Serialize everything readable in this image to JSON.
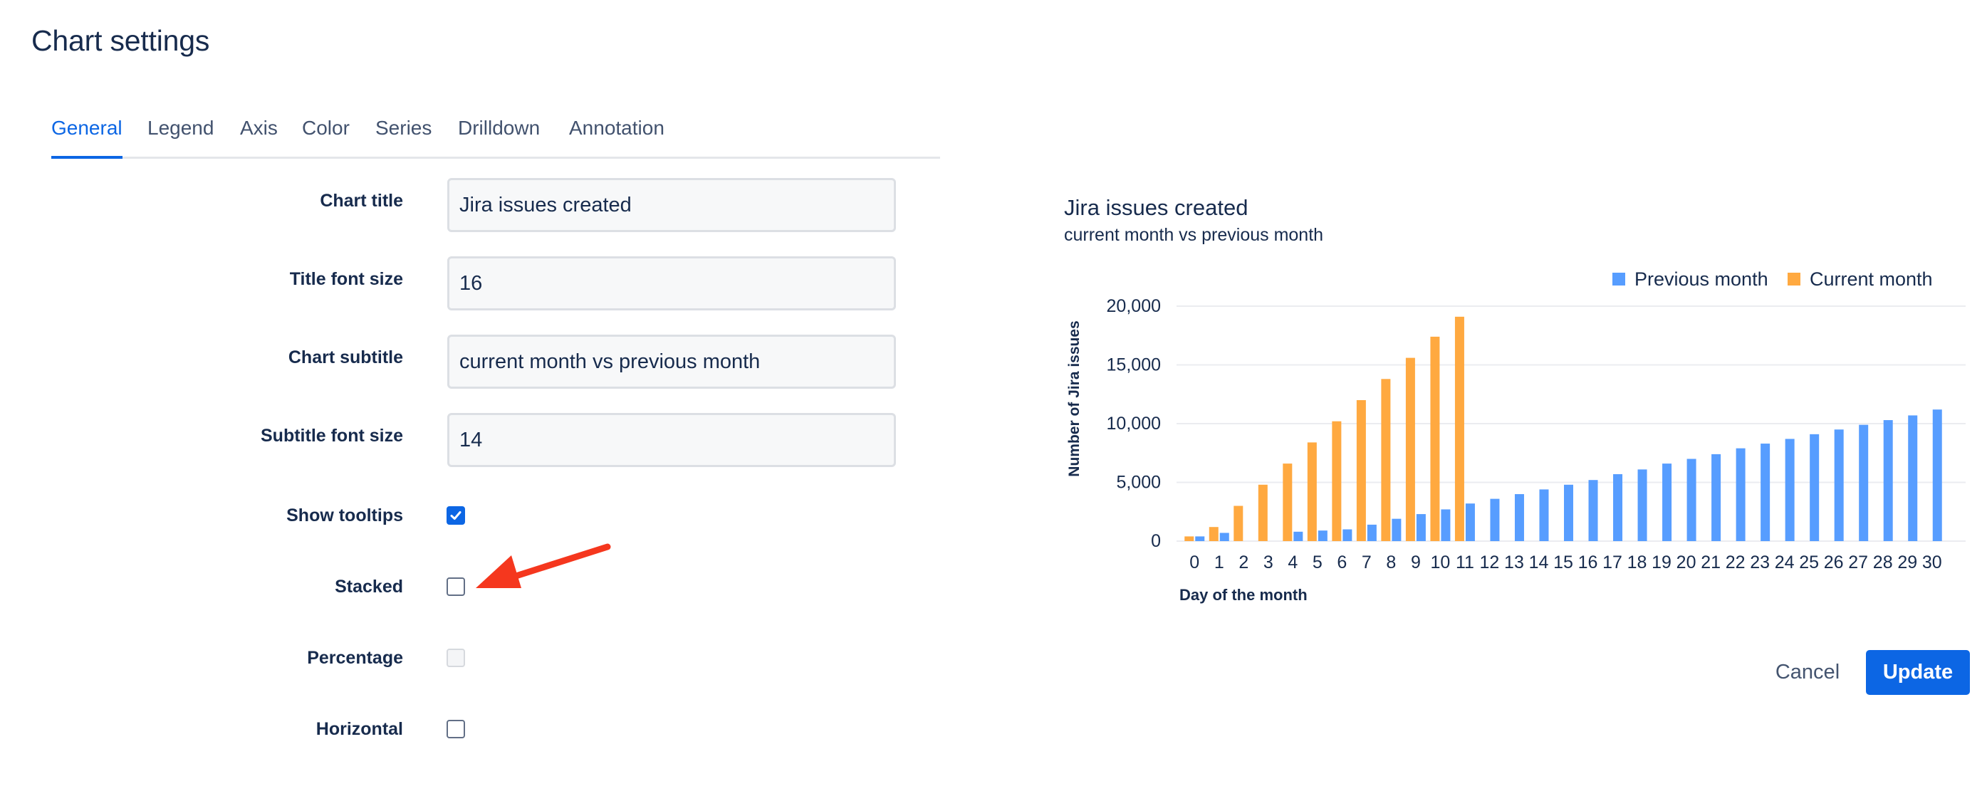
{
  "page": {
    "title": "Chart settings"
  },
  "tabs": [
    {
      "label": "General",
      "active": true
    },
    {
      "label": "Legend",
      "active": false
    },
    {
      "label": "Axis",
      "active": false
    },
    {
      "label": "Color",
      "active": false
    },
    {
      "label": "Series",
      "active": false
    },
    {
      "label": "Drilldown",
      "active": false
    },
    {
      "label": "Annotation",
      "active": false
    }
  ],
  "form": {
    "chart_title": {
      "label": "Chart title",
      "value": "Jira issues created"
    },
    "title_font_size": {
      "label": "Title font size",
      "value": "16"
    },
    "chart_subtitle": {
      "label": "Chart subtitle",
      "value": "current month vs previous month"
    },
    "subtitle_font_size": {
      "label": "Subtitle font size",
      "value": "14"
    },
    "show_tooltips": {
      "label": "Show tooltips",
      "checked": true
    },
    "stacked": {
      "label": "Stacked",
      "checked": false
    },
    "percentage": {
      "label": "Percentage",
      "checked": false,
      "disabled": true
    },
    "horizontal": {
      "label": "Horizontal",
      "checked": false
    }
  },
  "annotation_arrow": {
    "icon": "arrow-icon",
    "color": "#f5371e"
  },
  "chart_data": {
    "type": "bar",
    "title": "Jira issues created",
    "subtitle": "current month vs previous month",
    "xlabel": "Day of the month",
    "ylabel": "Number of Jira issues",
    "categories": [
      "0",
      "1",
      "2",
      "3",
      "4",
      "5",
      "6",
      "7",
      "8",
      "9",
      "10",
      "11",
      "12",
      "13",
      "14",
      "15",
      "16",
      "17",
      "18",
      "19",
      "20",
      "21",
      "22",
      "23",
      "24",
      "25",
      "26",
      "27",
      "28",
      "29",
      "30"
    ],
    "ylim": [
      0,
      20000
    ],
    "yticks": [
      "0",
      "5,000",
      "10,000",
      "15,000",
      "20,000"
    ],
    "grid": true,
    "legend_position": "top-right",
    "series": [
      {
        "name": "Current month",
        "color": "#ffa940",
        "values": [
          400,
          1200,
          3000,
          4800,
          6600,
          8400,
          10200,
          12000,
          13800,
          15600,
          17400,
          19100,
          null,
          null,
          null,
          null,
          null,
          null,
          null,
          null,
          null,
          null,
          null,
          null,
          null,
          null,
          null,
          null,
          null,
          null,
          null
        ]
      },
      {
        "name": "Previous month",
        "color": "#579dff",
        "values": [
          400,
          700,
          null,
          null,
          800,
          900,
          1000,
          1400,
          1900,
          2300,
          2700,
          3200,
          3600,
          4000,
          4400,
          4800,
          5200,
          5700,
          6100,
          6600,
          7000,
          7400,
          7900,
          8300,
          8700,
          9100,
          9500,
          9900,
          10300,
          10700,
          11200
        ]
      }
    ],
    "legend_order": [
      "Previous month",
      "Current month"
    ]
  },
  "buttons": {
    "cancel": "Cancel",
    "update": "Update"
  }
}
